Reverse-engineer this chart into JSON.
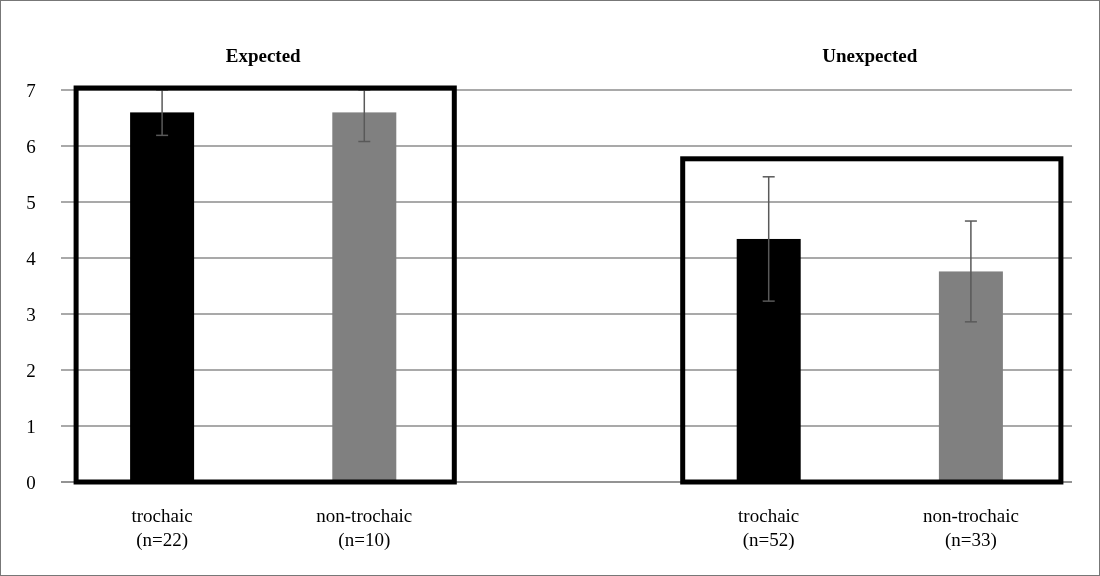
{
  "chart_data": {
    "type": "bar",
    "categories": [
      "trochaic\n(n=22)",
      "non-trochaic\n(n=10)",
      "trochaic\n(n=52)",
      "non-trochaic\n(n=33)"
    ],
    "values": [
      6.6,
      6.6,
      4.34,
      3.76
    ],
    "colors": [
      "#000000",
      "#808080",
      "#000000",
      "#808080"
    ],
    "errors": [
      [
        6.19,
        7
      ],
      [
        6.08,
        7
      ],
      1.11,
      0.9
    ],
    "annotations": [
      "Expected",
      "Unexpected"
    ],
    "ylim": [
      0,
      7
    ],
    "yticks": [
      0,
      1,
      2,
      3,
      4,
      5,
      6,
      7
    ],
    "grid": "y"
  }
}
